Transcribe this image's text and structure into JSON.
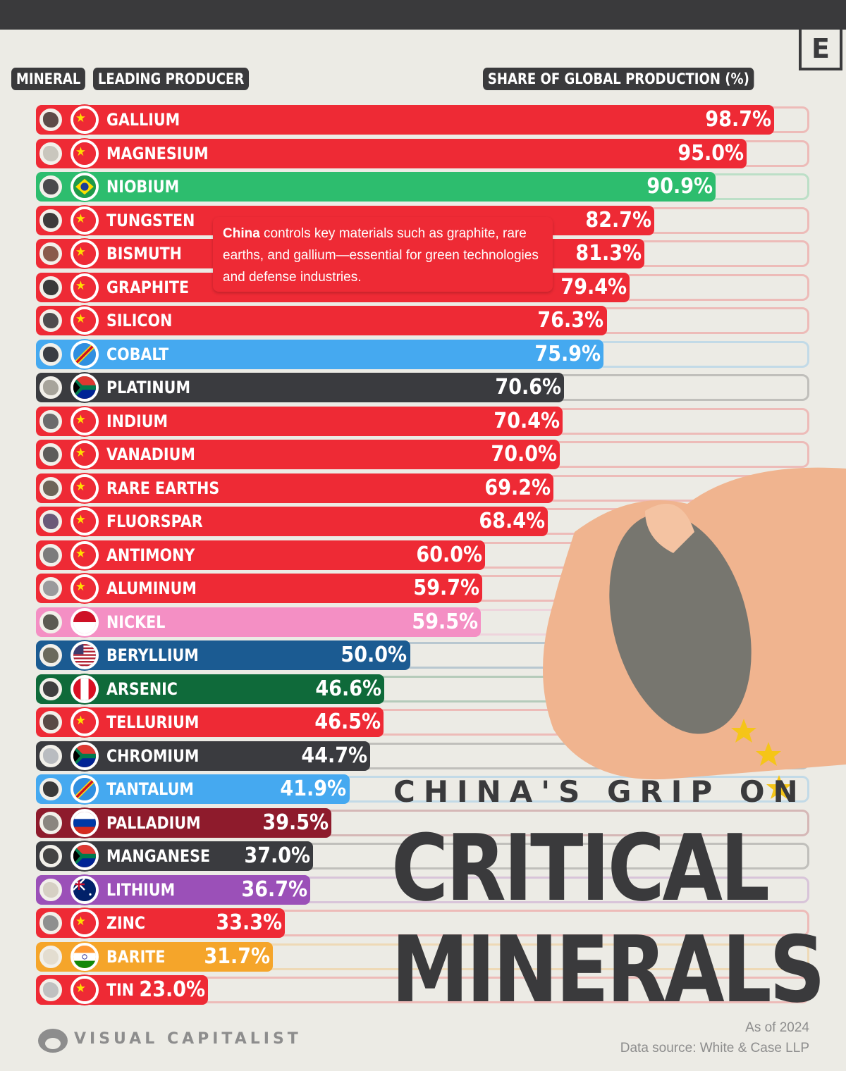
{
  "headers": {
    "mineral": "MINERAL",
    "producer": "LEADING PRODUCER",
    "share": "SHARE OF GLOBAL PRODUCTION (%)"
  },
  "logo": "E",
  "note": {
    "bold": "China",
    "text": " controls key materials such as graphite, rare earths, and gallium—essential for green technologies and defense industries."
  },
  "title": {
    "line1": "CHINA'S GRIP ON",
    "line2": "CRITICAL",
    "line3": "MINERALS"
  },
  "footer": {
    "brand": "VISUAL CAPITALIST",
    "as_of": "As of 2024",
    "source": "Data source: White & Case LLP"
  },
  "colors": {
    "China": "#ee2a35",
    "Brazil": "#2dbd6e",
    "DRC": "#45a9f0",
    "South Africa": "#3a3b3f",
    "Indonesia": "#f48fc4",
    "USA": "#1b5b92",
    "Peru": "#0f6a3a",
    "Russia": "#8e1b2c",
    "Australia": "#9b50b8",
    "India": "#f5a52a"
  },
  "chart_data": {
    "type": "bar",
    "orientation": "horizontal",
    "xlabel": "SHARE OF GLOBAL PRODUCTION (%)",
    "xlim": [
      0,
      100
    ],
    "categories": [
      "GALLIUM",
      "MAGNESIUM",
      "NIOBIUM",
      "TUNGSTEN",
      "BISMUTH",
      "GRAPHITE",
      "SILICON",
      "COBALT",
      "PLATINUM",
      "INDIUM",
      "VANADIUM",
      "RARE EARTHS",
      "FLUORSPAR",
      "ANTIMONY",
      "ALUMINUM",
      "NICKEL",
      "BERYLLIUM",
      "ARSENIC",
      "TELLURIUM",
      "CHROMIUM",
      "TANTALUM",
      "PALLADIUM",
      "MANGANESE",
      "LITHIUM",
      "ZINC",
      "BARITE",
      "TIN"
    ],
    "values": [
      98.7,
      95.0,
      90.9,
      82.7,
      81.3,
      79.4,
      76.3,
      75.9,
      70.6,
      70.4,
      70.0,
      69.2,
      68.4,
      60.0,
      59.7,
      59.5,
      50.0,
      46.6,
      46.5,
      44.7,
      41.9,
      39.5,
      37.0,
      36.7,
      33.3,
      31.7,
      23.0
    ],
    "producer_flag_icons": [
      "China",
      "China",
      "Brazil",
      "China",
      "China",
      "China",
      "China",
      "DRC",
      "South Africa",
      "China",
      "China",
      "China",
      "China",
      "China",
      "China",
      "Indonesia",
      "USA",
      "Peru",
      "China",
      "South Africa",
      "DRC",
      "Russia",
      "South Africa",
      "Australia",
      "China",
      "India",
      "China"
    ]
  }
}
